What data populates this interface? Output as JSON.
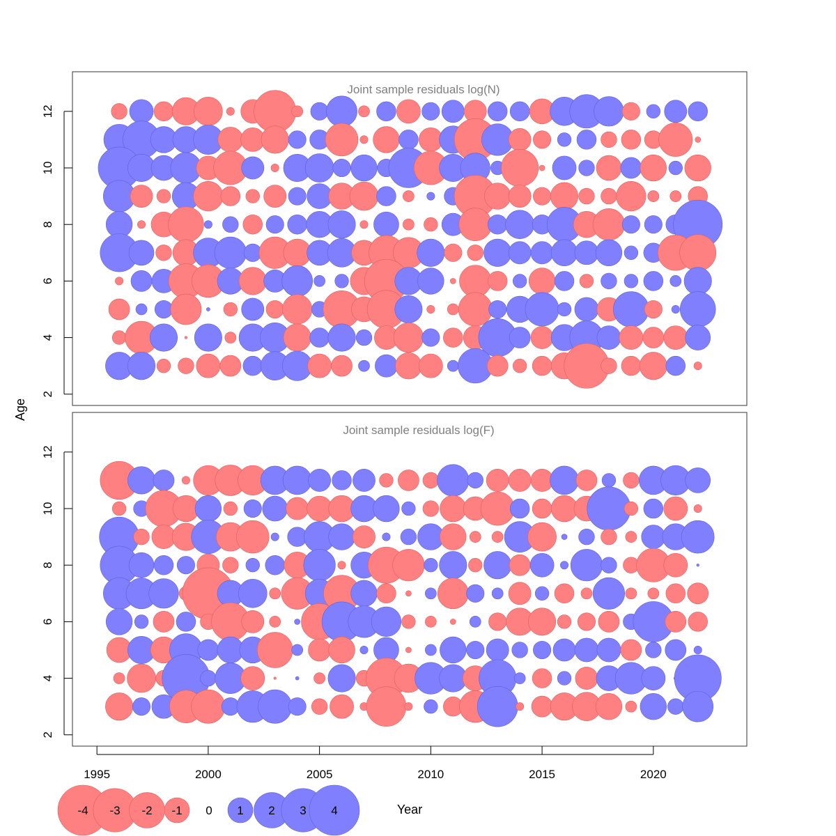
{
  "chart_data": {
    "type": "bubble",
    "xlabel": "Year",
    "ylabel": "Age",
    "xlim": [
      1993.9,
      2024.2
    ],
    "x_ticks": [
      1995,
      2000,
      2005,
      2010,
      2015,
      2020
    ],
    "y_ticks": [
      2,
      4,
      6,
      8,
      10,
      12
    ],
    "years": [
      1996,
      1997,
      1998,
      1999,
      2000,
      2001,
      2002,
      2003,
      2004,
      2005,
      2006,
      2007,
      2008,
      2009,
      2010,
      2011,
      2012,
      2013,
      2014,
      2015,
      2016,
      2017,
      2018,
      2019,
      2020,
      2021,
      2022
    ],
    "colors": {
      "negative": "#ff8080",
      "positive": "#8080ff"
    },
    "legend": {
      "values": [
        -4,
        -3,
        -2,
        -1,
        0,
        1,
        2,
        3,
        4
      ],
      "labels": [
        "-4",
        "-3",
        "-2",
        "-1",
        "0",
        "1",
        "2",
        "3",
        "4"
      ]
    },
    "panels": [
      {
        "title": "Joint sample residuals log(N)",
        "ylim": [
          1.6,
          13.4
        ],
        "ages": [
          12,
          11,
          10,
          9,
          8,
          7,
          6,
          5,
          4,
          3
        ],
        "residuals": [
          [
            -0.4,
            0.9,
            -0.6,
            -1.2,
            -1.3,
            -0.1,
            -0.9,
            -2.8,
            -0.2,
            0.5,
            1.5,
            -0.2,
            0.6,
            -0.9,
            0.5,
            0.8,
            -0.8,
            0.6,
            0.6,
            -1.0,
            1.3,
            1.8,
            1.4,
            -0.5,
            0.3,
            0.8,
            0.6
          ],
          [
            1.5,
            2.2,
            1.1,
            1.1,
            1.4,
            -1.0,
            -0.9,
            -1.2,
            0.5,
            0.6,
            -1.7,
            -0.1,
            -1.1,
            0.6,
            -0.9,
            1.2,
            -2.8,
            1.6,
            -0.8,
            -0.5,
            0.3,
            0.6,
            -0.4,
            -0.6,
            -0.5,
            -1.8,
            -0.05
          ],
          [
            2.8,
            1.2,
            1.0,
            1.5,
            -0.9,
            -1.8,
            0.8,
            -0.1,
            1.2,
            1.3,
            0.5,
            1.1,
            0.5,
            2.5,
            -1.8,
            1.2,
            1.4,
            0.3,
            -2.2,
            -0.05,
            0.9,
            0.4,
            -1.0,
            0.7,
            -1.1,
            0.3,
            -1.1
          ],
          [
            1.6,
            -0.8,
            -0.3,
            1.2,
            -1.4,
            -0.6,
            -0.3,
            -0.8,
            0.5,
            1.0,
            -1.1,
            -1.3,
            0.6,
            -0.2,
            0.1,
            0.5,
            -2.8,
            -1.1,
            -0.8,
            -0.5,
            -1.2,
            -0.4,
            -0.4,
            -1.4,
            -0.2,
            -0.2,
            -0.6
          ],
          [
            1.1,
            -0.1,
            -1.0,
            -2.0,
            0.1,
            0.4,
            -0.6,
            0.5,
            0.6,
            1.1,
            1.2,
            -0.1,
            1.0,
            -0.2,
            -0.3,
            0.8,
            -1.7,
            0.6,
            1.3,
            0.6,
            1.9,
            -1.1,
            -1.6,
            0.5,
            0.5,
            0.6,
            3.8
          ],
          [
            2.3,
            1.0,
            -0.4,
            -1.1,
            1.4,
            1.6,
            0.5,
            -1.6,
            -1.2,
            1.0,
            1.3,
            -1.0,
            -1.9,
            -1.5,
            1.2,
            -0.5,
            -0.4,
            1.2,
            0.8,
            0.8,
            1.1,
            0.9,
            1.1,
            0.3,
            0.6,
            -2.0,
            -2.1
          ],
          [
            -0.1,
            0.7,
            0.9,
            -1.9,
            -1.7,
            1.1,
            -1.2,
            0.8,
            1.5,
            0.2,
            0.3,
            -1.2,
            -3.0,
            1.2,
            1.1,
            -0.05,
            -1.6,
            -0.6,
            0.3,
            -1.1,
            0.6,
            -0.3,
            0.4,
            0.3,
            0.6,
            0.2,
            1.2
          ],
          [
            -0.7,
            0.2,
            0.5,
            -1.5,
            0.02,
            -0.3,
            0.8,
            -0.5,
            -1.4,
            0.4,
            -2.2,
            -1.0,
            -2.3,
            1.2,
            -0.1,
            -0.2,
            -1.8,
            0.5,
            1.1,
            1.8,
            0.3,
            0.9,
            -0.9,
            2.0,
            -0.5,
            0.1,
            2.0
          ],
          [
            -0.3,
            -1.7,
            1.2,
            -0.01,
            1.2,
            -0.2,
            1.2,
            1.4,
            -1.2,
            0.6,
            1.2,
            0.4,
            -0.9,
            -1.4,
            0.5,
            -0.6,
            -0.9,
            2.3,
            0.7,
            -0.8,
            1.1,
            1.8,
            0.9,
            -0.9,
            -0.7,
            -0.9,
            1.0
          ],
          [
            1.2,
            1.2,
            -0.3,
            -0.4,
            -0.9,
            -0.7,
            0.6,
            1.3,
            1.4,
            -0.9,
            -0.7,
            0.2,
            0.8,
            -1.1,
            -0.9,
            0.2,
            1.9,
            -0.7,
            -0.3,
            -0.6,
            -1.1,
            -3.2,
            -0.4,
            -0.6,
            -1.2,
            0.6,
            -0.1
          ]
        ]
      },
      {
        "title": "Joint sample residuals log(F)",
        "ylim": [
          1.6,
          13.4
        ],
        "ages": [
          11,
          10,
          9,
          8,
          7,
          6,
          5,
          4,
          3
        ],
        "residuals": [
          [
            -2.3,
            1.2,
            0.7,
            -0.1,
            -1.4,
            -1.5,
            -1.4,
            1.3,
            1.3,
            0.8,
            0.6,
            0.8,
            -0.3,
            -0.7,
            -0.4,
            1.6,
            0.4,
            -0.8,
            -0.8,
            -0.8,
            1.3,
            -0.7,
            0.3,
            -0.4,
            1.3,
            1.4,
            1.0
          ],
          [
            -0.3,
            0.4,
            -2.1,
            -1.1,
            1.1,
            -0.3,
            0.5,
            1.0,
            -0.8,
            -1.0,
            -1.1,
            1.1,
            1.1,
            0.3,
            -0.4,
            -1.1,
            -0.9,
            -1.8,
            0.6,
            -0.6,
            -1.1,
            -1.0,
            3.0,
            -0.3,
            0.6,
            -0.9,
            -0.1
          ],
          [
            2.5,
            -0.4,
            -0.9,
            -1.2,
            1.8,
            -1.3,
            -1.7,
            0.1,
            0.6,
            1.5,
            1.1,
            -0.8,
            0.1,
            0.4,
            1.1,
            -1.1,
            -0.2,
            -0.2,
            1.5,
            -1.3,
            0.05,
            0.4,
            -0.4,
            -0.2,
            0.9,
            1.1,
            1.7
          ],
          [
            2.3,
            1.0,
            0.6,
            0.5,
            -0.8,
            -0.4,
            0.3,
            0.6,
            -1.1,
            1.6,
            -0.1,
            1.1,
            -2.1,
            -1.6,
            0.3,
            1.2,
            -0.3,
            1.2,
            -0.7,
            0.9,
            0.1,
            1.6,
            0.4,
            -0.4,
            -1.8,
            -0.9,
            0.01
          ],
          [
            1.6,
            1.5,
            1.4,
            -0.3,
            -4.2,
            1.1,
            1.3,
            -0.2,
            -1.6,
            1.3,
            -2.1,
            1.1,
            -0.6,
            -0.05,
            0.2,
            -1.5,
            0.5,
            0.2,
            -0.8,
            0.3,
            -0.6,
            -0.2,
            1.6,
            -0.2,
            -0.2,
            -0.6,
            -0.7
          ],
          [
            1.1,
            0.3,
            -0.7,
            0.6,
            -0.4,
            -2.3,
            -0.8,
            -0.2,
            0.05,
            -2.1,
            2.5,
            1.6,
            1.4,
            -0.3,
            -0.2,
            -0.05,
            0.2,
            -0.5,
            -1.2,
            -1.2,
            -0.3,
            -0.5,
            -0.7,
            0.4,
            2.6,
            -0.7,
            -0.6
          ],
          [
            -1.0,
            1.2,
            -1.1,
            1.7,
            0.7,
            1.1,
            1.1,
            -2.0,
            0.2,
            -0.8,
            -1.1,
            0.1,
            1.0,
            -0.05,
            0.2,
            1.1,
            0.5,
            0.8,
            0.4,
            0.5,
            0.8,
            0.9,
            0.9,
            -0.7,
            0.4,
            0.7,
            0.1
          ],
          [
            -0.2,
            -1.3,
            -0.4,
            3.6,
            0.4,
            1.5,
            -0.9,
            -0.01,
            0.02,
            -0.2,
            1.2,
            -0.4,
            -2.6,
            -1.3,
            1.6,
            1.2,
            -1.0,
            2.2,
            0.2,
            -0.6,
            0.3,
            -0.8,
            1.0,
            1.6,
            0.9,
            0.02,
            3.5
          ],
          [
            -1.2,
            0.5,
            0.9,
            -1.7,
            -1.8,
            0.5,
            1.6,
            1.8,
            0.5,
            -0.4,
            -0.9,
            -0.1,
            -2.5,
            -0.1,
            0.3,
            -0.6,
            -1.6,
            2.6,
            -0.1,
            -0.7,
            -1.2,
            -1.3,
            -1.1,
            -0.2,
            1.1,
            0.4,
            1.5
          ]
        ]
      }
    ]
  }
}
